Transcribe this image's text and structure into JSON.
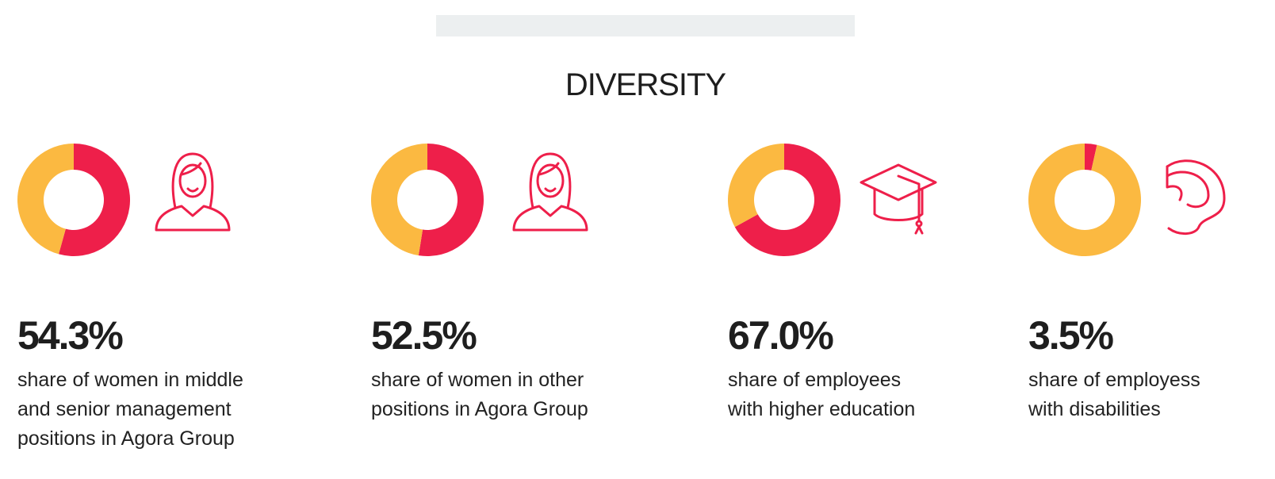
{
  "title": "DIVERSITY",
  "chart_data": [
    {
      "type": "pie",
      "values": [
        54.3,
        45.7
      ],
      "value_labels": [
        "54.3%",
        null
      ],
      "colors": [
        "#ee1f4a",
        "#fbb941"
      ],
      "caption_lines": [
        "share of women in middle",
        "and senior management",
        "positions in Agora Group"
      ]
    },
    {
      "type": "pie",
      "values": [
        52.5,
        47.5
      ],
      "value_labels": [
        "52.5%",
        null
      ],
      "colors": [
        "#ee1f4a",
        "#fbb941"
      ],
      "caption_lines": [
        "share of women in other",
        "positions in Agora Group"
      ]
    },
    {
      "type": "pie",
      "values": [
        67.0,
        33.0
      ],
      "value_labels": [
        "67.0%",
        null
      ],
      "colors": [
        "#ee1f4a",
        "#fbb941"
      ],
      "caption_lines": [
        "share of employees",
        "with higher education"
      ]
    },
    {
      "type": "pie",
      "values": [
        3.5,
        96.5
      ],
      "value_labels": [
        "3.5%",
        null
      ],
      "colors": [
        "#ee1f4a",
        "#fbb941"
      ],
      "caption_lines": [
        "share of employess",
        "with disabilities"
      ]
    }
  ]
}
